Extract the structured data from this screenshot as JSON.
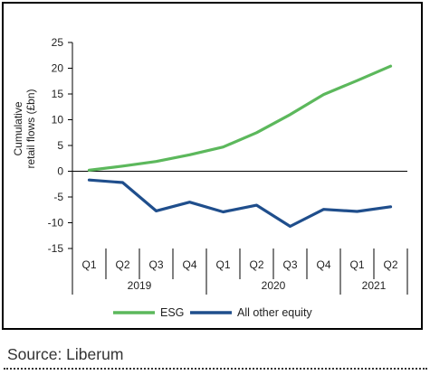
{
  "chart_data": {
    "type": "line",
    "ylabel": [
      "Cumulative",
      "retail flows (£bn)"
    ],
    "ylim": [
      -15,
      25
    ],
    "yticks": [
      25,
      20,
      15,
      10,
      5,
      0,
      -5,
      -10,
      -15
    ],
    "categories": [
      "Q1",
      "Q2",
      "Q3",
      "Q4",
      "Q1",
      "Q2",
      "Q3",
      "Q4",
      "Q1",
      "Q2"
    ],
    "year_groups": [
      {
        "label": "2019",
        "span": 4
      },
      {
        "label": "2020",
        "span": 4
      },
      {
        "label": "2021",
        "span": 2
      }
    ],
    "series": [
      {
        "name": "ESG",
        "color": "#5cb85c",
        "values": [
          0.2,
          1.0,
          1.9,
          3.2,
          4.7,
          7.5,
          11.0,
          14.9,
          17.6,
          20.4
        ]
      },
      {
        "name": "All other equity",
        "color": "#1f4e8c",
        "values": [
          -1.7,
          -2.2,
          -7.7,
          -6.0,
          -7.9,
          -6.6,
          -10.7,
          -7.4,
          -7.8,
          -6.9
        ]
      }
    ],
    "grid": false,
    "legend_position": "bottom"
  },
  "footer": {
    "source": "Source: Liberum"
  }
}
